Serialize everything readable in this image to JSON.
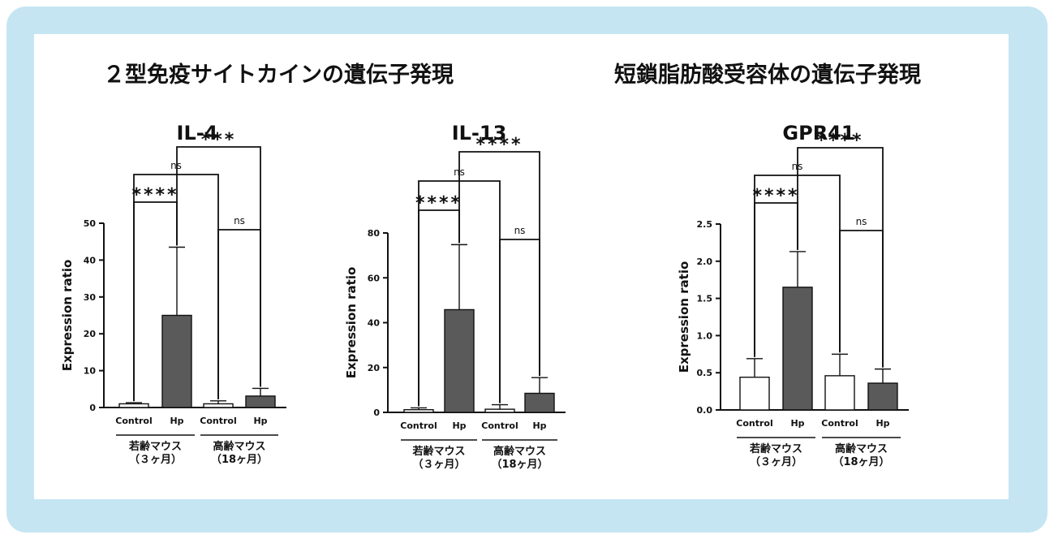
{
  "section_titles": {
    "cytokine": "２型免疫サイトカインの遺伝子発現",
    "receptor": "短鎖脂肪酸受容体の遺伝子発現"
  },
  "colors": {
    "frame": "#c5e5f3",
    "bar_dark": "#5a5a5a",
    "bar_light": "#ffffff",
    "stroke": "#111111"
  },
  "chart_data": [
    {
      "type": "bar",
      "title": "IL-4",
      "ylabel": "Expression ratio",
      "categories": [
        "Control",
        "Hp",
        "Control",
        "Hp"
      ],
      "groups": [
        {
          "label": "若齢マウス",
          "sublabel": "（３ヶ月）"
        },
        {
          "label": "高齢マウス",
          "sublabel": "（18ヶ月）"
        }
      ],
      "values": [
        1.0,
        25.0,
        1.0,
        3.1
      ],
      "errors": [
        0.3,
        18.5,
        0.8,
        2.1
      ],
      "ylim": [
        0,
        50
      ],
      "yticks": [
        "0",
        "10",
        "20",
        "30",
        "40",
        "50"
      ],
      "significance": [
        {
          "from": 1,
          "to": 3,
          "label": "***"
        },
        {
          "from": 0,
          "to": 2,
          "label": "ns"
        },
        {
          "from": 0,
          "to": 1,
          "label": "****"
        },
        {
          "from": 2,
          "to": 3,
          "label": "ns"
        }
      ]
    },
    {
      "type": "bar",
      "title": "IL-13",
      "ylabel": "Expression ratio",
      "categories": [
        "Control",
        "Hp",
        "Control",
        "Hp"
      ],
      "groups": [
        {
          "label": "若齢マウス",
          "sublabel": "（３ヶ月）"
        },
        {
          "label": "高齢マウス",
          "sublabel": "（18ヶ月）"
        }
      ],
      "values": [
        1.2,
        45.8,
        1.4,
        8.5
      ],
      "errors": [
        0.8,
        29.0,
        2.0,
        7.0
      ],
      "ylim": [
        0,
        80
      ],
      "yticks": [
        "0",
        "20",
        "40",
        "60",
        "80"
      ],
      "significance": [
        {
          "from": 1,
          "to": 3,
          "label": "****"
        },
        {
          "from": 0,
          "to": 2,
          "label": "ns"
        },
        {
          "from": 0,
          "to": 1,
          "label": "****"
        },
        {
          "from": 2,
          "to": 3,
          "label": "ns"
        }
      ]
    },
    {
      "type": "bar",
      "title": "GPR41",
      "ylabel": "Expression ratio",
      "categories": [
        "Control",
        "Hp",
        "Control",
        "Hp"
      ],
      "groups": [
        {
          "label": "若齢マウス",
          "sublabel": "（３ヶ月）"
        },
        {
          "label": "高齢マウス",
          "sublabel": "（18ヶ月）"
        }
      ],
      "values": [
        0.44,
        1.65,
        0.46,
        0.36
      ],
      "errors": [
        0.25,
        0.48,
        0.29,
        0.19
      ],
      "ylim": [
        0,
        2.5
      ],
      "yticks": [
        "0.0",
        "0.5",
        "1.0",
        "1.5",
        "2.0",
        "2.5"
      ],
      "significance": [
        {
          "from": 1,
          "to": 3,
          "label": "****"
        },
        {
          "from": 0,
          "to": 2,
          "label": "ns"
        },
        {
          "from": 0,
          "to": 1,
          "label": "****"
        },
        {
          "from": 2,
          "to": 3,
          "label": "ns"
        }
      ]
    }
  ]
}
